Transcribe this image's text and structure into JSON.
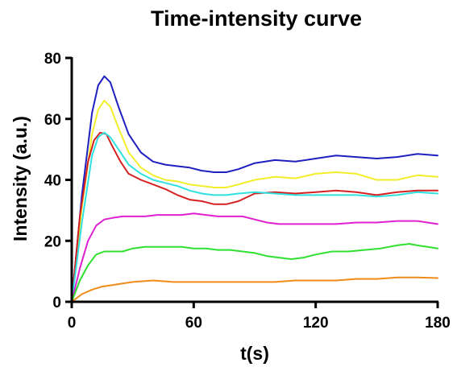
{
  "chart_data": {
    "type": "line",
    "title": "Time-intensity curve",
    "xlabel": "t(s)",
    "ylabel": "Intensity (a.u.)",
    "xlim": [
      0,
      180
    ],
    "ylim": [
      0,
      80
    ],
    "xticks": [
      "0",
      "60",
      "120",
      "180"
    ],
    "yticks": [
      "0",
      "20",
      "40",
      "60",
      "80"
    ],
    "grid": false,
    "legend": "none",
    "series": [
      {
        "color": "#1f1fbf",
        "x": [
          0,
          5,
          10,
          13,
          16,
          19,
          23,
          28,
          34,
          40,
          46,
          52,
          58,
          64,
          70,
          76,
          82,
          90,
          100,
          110,
          120,
          130,
          140,
          150,
          160,
          170,
          180
        ],
        "y": [
          0,
          35,
          62,
          71,
          74,
          72,
          64,
          55,
          49,
          46,
          45,
          44.5,
          44,
          43,
          42.5,
          42.5,
          43.5,
          45.5,
          46.5,
          46,
          47,
          48,
          47.5,
          47,
          47.5,
          48.5,
          48
        ]
      },
      {
        "color": "#f2ee2a",
        "x": [
          0,
          5,
          10,
          13,
          16,
          19,
          23,
          28,
          34,
          40,
          46,
          52,
          58,
          64,
          70,
          76,
          82,
          90,
          100,
          110,
          120,
          130,
          140,
          150,
          160,
          170,
          180
        ],
        "y": [
          0,
          31,
          55,
          63,
          66,
          64,
          57,
          49,
          44,
          41.5,
          40,
          39.5,
          38.5,
          38,
          37.5,
          37.5,
          38.5,
          40,
          41,
          40.5,
          42,
          42.5,
          42,
          40,
          40,
          41.5,
          41
        ]
      },
      {
        "color": "#d42020",
        "x": [
          0,
          4,
          8,
          11,
          14,
          17,
          20,
          24,
          28,
          34,
          40,
          46,
          52,
          58,
          64,
          70,
          76,
          82,
          90,
          100,
          110,
          120,
          130,
          140,
          150,
          160,
          170,
          180
        ],
        "y": [
          0,
          28,
          46,
          53,
          55.5,
          55,
          51,
          46,
          42,
          40,
          38.5,
          37,
          35,
          33.5,
          33,
          32,
          32,
          33,
          35.5,
          36,
          35.5,
          36,
          36.5,
          36,
          35,
          36,
          36.5,
          36.5
        ]
      },
      {
        "color": "#2fe0e0",
        "x": [
          0,
          5,
          10,
          13,
          16,
          19,
          23,
          28,
          34,
          40,
          46,
          52,
          58,
          64,
          70,
          76,
          82,
          90,
          100,
          110,
          120,
          130,
          140,
          150,
          160,
          170,
          180
        ],
        "y": [
          0,
          26,
          48,
          54,
          55.5,
          54,
          50,
          45,
          42,
          40,
          39,
          38,
          36.5,
          35.5,
          35,
          35,
          35.5,
          36,
          35.5,
          35,
          35,
          35,
          35,
          34.5,
          35,
          36,
          35.5
        ]
      },
      {
        "color": "#e020d0",
        "x": [
          0,
          4,
          8,
          12,
          16,
          20,
          25,
          30,
          36,
          42,
          48,
          54,
          60,
          66,
          72,
          78,
          84,
          90,
          96,
          102,
          110,
          120,
          130,
          140,
          150,
          160,
          170,
          180
        ],
        "y": [
          0,
          11,
          20,
          25,
          27,
          27.5,
          28,
          28,
          28,
          28.5,
          28.5,
          28.5,
          29,
          28.5,
          28,
          28,
          28,
          27,
          26,
          25.5,
          25.5,
          25.5,
          25.5,
          26,
          26,
          26.5,
          26.5,
          25.5
        ]
      },
      {
        "color": "#30e030",
        "x": [
          0,
          4,
          8,
          12,
          16,
          20,
          25,
          30,
          36,
          42,
          48,
          54,
          60,
          66,
          72,
          78,
          84,
          90,
          96,
          102,
          108,
          114,
          120,
          128,
          136,
          144,
          152,
          160,
          166,
          170,
          175,
          180
        ],
        "y": [
          0,
          7,
          12,
          15.5,
          16.5,
          16.5,
          16.5,
          17.5,
          18,
          18,
          18,
          18,
          17.5,
          17.5,
          17,
          17,
          16.5,
          16,
          15,
          14.5,
          14,
          14.5,
          15.5,
          16.5,
          16.5,
          17,
          17.5,
          18.5,
          19,
          18.5,
          18,
          17.5
        ]
      },
      {
        "color": "#f08a1a",
        "x": [
          0,
          5,
          10,
          15,
          20,
          25,
          30,
          40,
          50,
          60,
          70,
          80,
          90,
          100,
          110,
          120,
          130,
          140,
          150,
          160,
          170,
          180
        ],
        "y": [
          0,
          2.5,
          4,
          5,
          5.5,
          6,
          6.5,
          7,
          6.5,
          6.5,
          6.5,
          6.5,
          6.5,
          6.5,
          7,
          7,
          7,
          7.5,
          7.5,
          8,
          8,
          7.8
        ]
      }
    ]
  }
}
